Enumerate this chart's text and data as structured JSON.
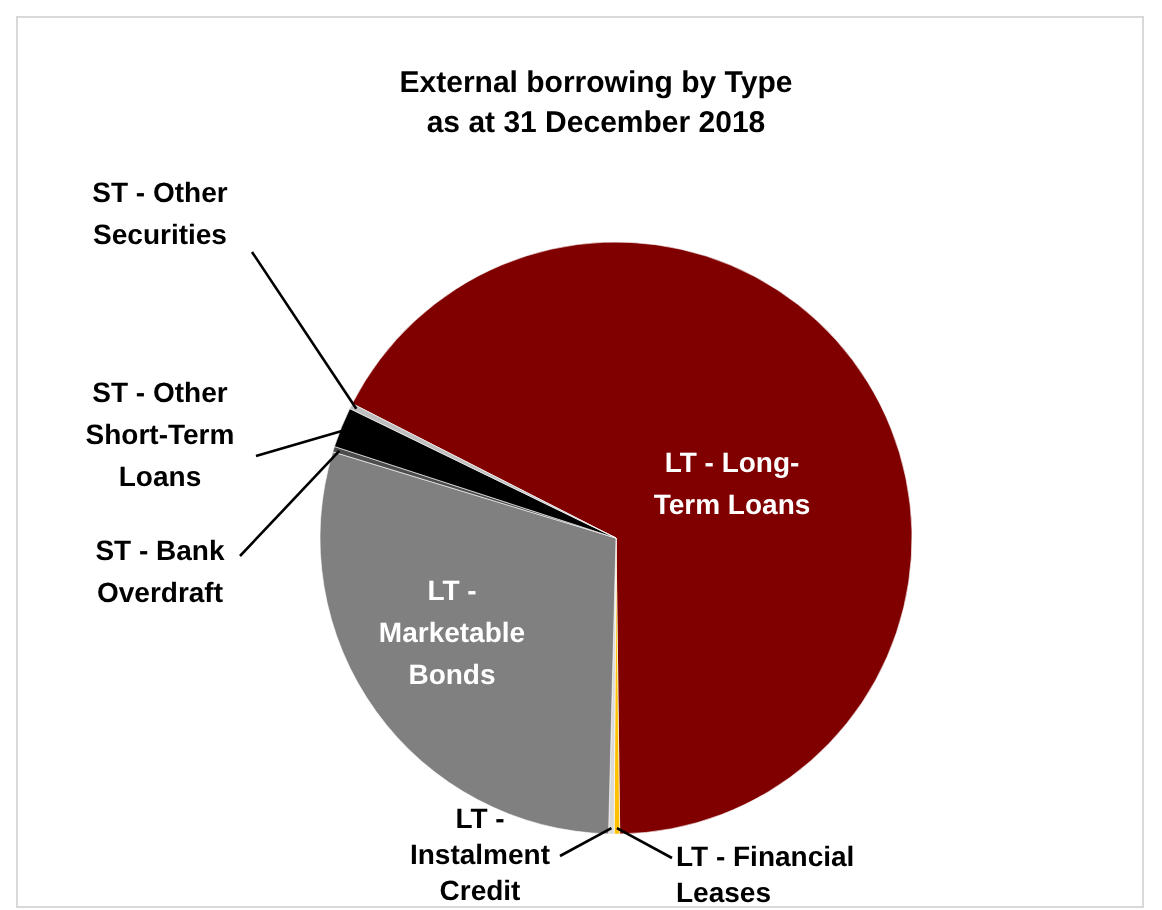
{
  "chart_data": {
    "type": "pie",
    "title": "External borrowing by Type\nas at 31 December 2018",
    "categories": [
      "LT - Long-Term Loans",
      "LT - Financial Leases",
      "LT - Instalment Credit",
      "LT - Marketable Bonds",
      "ST - Bank Overdraft",
      "ST - Other Short-Term Loans",
      "ST - Other Securities"
    ],
    "values": [
      67.3,
      0.3,
      0.3,
      29.3,
      0.3,
      2.2,
      0.3
    ],
    "colors": [
      "#800000",
      "#ffc000",
      "#d9d9d9",
      "#808080",
      "#4d4d4d",
      "#000000",
      "#bfbfbf"
    ]
  }
}
